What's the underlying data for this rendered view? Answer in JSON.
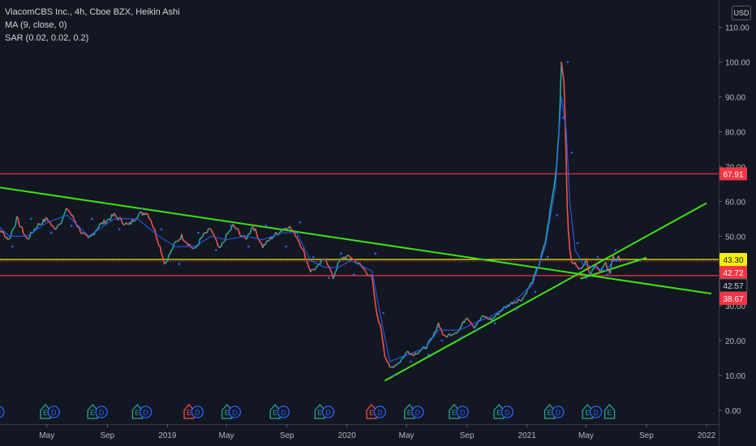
{
  "header": {
    "title": "ViacomCBS Inc., 4h, Cboe BZX, Heikin Ashi",
    "indicator_ma": "MA (9, close, 0)",
    "indicator_sar": "SAR (0.02, 0.02, 0.2)",
    "currency": "USD"
  },
  "colors": {
    "background": "#131722",
    "up": "#26a69a",
    "down": "#ef5350",
    "ma": "#2962ff",
    "sar": "#2962ff",
    "trend_green": "#3fe214",
    "level_red": "#f23645",
    "level_yellow": "#f7f000",
    "axis_text": "#b2b5be"
  },
  "chart_data": {
    "type": "line",
    "title": "ViacomCBS Inc., 4h, Cboe BZX, Heikin Ashi",
    "xlabel": "",
    "ylabel": "",
    "ylim": [
      -2,
      118
    ],
    "x_tick_labels": [
      {
        "label": "May",
        "date": "2018-05-01"
      },
      {
        "label": "Sep",
        "date": "2018-09-01"
      },
      {
        "label": "2019",
        "date": "2019-01-01"
      },
      {
        "label": "May",
        "date": "2019-05-01"
      },
      {
        "label": "Sep",
        "date": "2019-09-01"
      },
      {
        "label": "2020",
        "date": "2020-01-01"
      },
      {
        "label": "May",
        "date": "2020-05-01"
      },
      {
        "label": "Sep",
        "date": "2020-09-01"
      },
      {
        "label": "2021",
        "date": "2021-01-01"
      },
      {
        "label": "May",
        "date": "2021-05-01"
      },
      {
        "label": "Sep",
        "date": "2021-09-01"
      },
      {
        "label": "2022",
        "date": "2022-01-01"
      }
    ],
    "y_ticks": [
      0,
      10,
      20,
      30,
      40,
      50,
      60,
      70,
      80,
      90,
      100,
      110
    ],
    "y_tick_labels": [
      "0.00",
      "10.00",
      "20.00",
      "30.00",
      "40.00",
      "50.00",
      "60.00",
      "70.00",
      "80.00",
      "90.00",
      "100.00",
      "110.00"
    ],
    "price_tags": [
      {
        "label": "67.91",
        "value": 67.91,
        "color": "#f23645",
        "text_color": "#ffffff"
      },
      {
        "label": "43.30",
        "value": 43.3,
        "color": "#f7f000",
        "text_color": "#131722"
      },
      {
        "label": "42.72",
        "value": 42.72,
        "color": "#f23645",
        "text_color": "#ffffff"
      },
      {
        "label": "42.57",
        "value": 42.57,
        "color": "#131722",
        "text_color": "#d1d4dc"
      },
      {
        "label": "38.67",
        "value": 38.67,
        "color": "#f23645",
        "text_color": "#ffffff"
      }
    ],
    "horizontal_levels": [
      {
        "value": 67.91,
        "color": "#f23645"
      },
      {
        "value": 43.3,
        "color": "#f7f000"
      },
      {
        "value": 38.67,
        "color": "#f23645"
      }
    ],
    "current_price": 42.72,
    "trend_lines": [
      {
        "x1": "2018-01-01",
        "y1": 64.5,
        "x2": "2022-01-11",
        "y2": 33.5
      },
      {
        "x1": "2020-03-18",
        "y1": 8.5,
        "x2": "2022-01-01",
        "y2": 59.5
      },
      {
        "x1": "2021-04-20",
        "y1": 37.8,
        "x2": "2021-09-01",
        "y2": 43.8
      }
    ],
    "series": [
      {
        "type": "price",
        "x": [
          "2018-01-01",
          "2018-01-18",
          "2018-02-13",
          "2018-03-01",
          "2018-03-22",
          "2018-04-11",
          "2018-05-02",
          "2018-05-16",
          "2018-06-02",
          "2018-06-12",
          "2018-07-11",
          "2018-07-25",
          "2018-08-15",
          "2018-09-15",
          "2018-10-14",
          "2018-11-01",
          "2018-11-19",
          "2018-11-28",
          "2018-12-15",
          "2018-12-27",
          "2019-01-17",
          "2019-01-30",
          "2019-02-25",
          "2019-03-14",
          "2019-03-31",
          "2019-04-17",
          "2019-05-01",
          "2019-05-15",
          "2019-06-09",
          "2019-06-24",
          "2019-07-14",
          "2019-08-04",
          "2019-08-24",
          "2019-09-04",
          "2019-09-21",
          "2019-10-01",
          "2019-10-19",
          "2019-11-02",
          "2019-11-18",
          "2019-12-04",
          "2019-12-14",
          "2019-12-24",
          "2020-01-09",
          "2020-01-26",
          "2020-02-21",
          "2020-03-01",
          "2020-03-11",
          "2020-03-18",
          "2020-03-28",
          "2020-04-18",
          "2020-05-04",
          "2020-05-14",
          "2020-06-09",
          "2020-06-24",
          "2020-07-05",
          "2020-07-17",
          "2020-08-16",
          "2020-09-01",
          "2020-09-16",
          "2020-10-04",
          "2020-10-21",
          "2020-11-12",
          "2020-12-03",
          "2020-12-23",
          "2021-01-12",
          "2021-01-26",
          "2021-02-07",
          "2021-02-17",
          "2021-02-28",
          "2021-03-07",
          "2021-03-12",
          "2021-03-17",
          "2021-03-22",
          "2021-03-24",
          "2021-03-26",
          "2021-03-29",
          "2021-04-03",
          "2021-04-09",
          "2021-04-16",
          "2021-04-25",
          "2021-05-02",
          "2021-05-10",
          "2021-05-20",
          "2021-05-30",
          "2021-06-10",
          "2021-06-19",
          "2021-06-25",
          "2021-07-01",
          "2021-07-06",
          "2021-07-11"
        ],
        "y": [
          57,
          53,
          49,
          55,
          49,
          53,
          55,
          52,
          55,
          58,
          51,
          49,
          53,
          56,
          53,
          56,
          57,
          55,
          48,
          42,
          48,
          50,
          46,
          50,
          52,
          46,
          50,
          53,
          49,
          53,
          47,
          50,
          52,
          53,
          50,
          47,
          40,
          41,
          44,
          38,
          42,
          44,
          44,
          42,
          38,
          28,
          23,
          16,
          12,
          14,
          17,
          16,
          18,
          21,
          25,
          21,
          23,
          27,
          24,
          27,
          26,
          29,
          31,
          32,
          37,
          42,
          48,
          57,
          67,
          80,
          100,
          96,
          70,
          58,
          52,
          46,
          42,
          43,
          40,
          42,
          43,
          39,
          42,
          40,
          42,
          39,
          45,
          43,
          44,
          42.72
        ]
      },
      {
        "type": "ma",
        "name": "MA (9, close, 0)",
        "x": [
          "2018-01-01",
          "2018-02-13",
          "2018-03-22",
          "2018-05-02",
          "2018-06-12",
          "2018-07-25",
          "2018-09-15",
          "2018-11-01",
          "2018-12-15",
          "2019-01-17",
          "2019-02-25",
          "2019-03-31",
          "2019-05-01",
          "2019-06-09",
          "2019-07-14",
          "2019-08-24",
          "2019-09-21",
          "2019-10-19",
          "2019-11-18",
          "2019-12-14",
          "2020-01-09",
          "2020-02-21",
          "2020-03-11",
          "2020-03-28",
          "2020-05-04",
          "2020-06-09",
          "2020-07-05",
          "2020-08-16",
          "2020-09-16",
          "2020-10-21",
          "2020-12-03",
          "2021-01-12",
          "2021-02-07",
          "2021-02-28",
          "2021-03-12",
          "2021-03-22",
          "2021-03-29",
          "2021-04-09",
          "2021-04-25",
          "2021-05-20",
          "2021-06-10",
          "2021-06-25",
          "2021-07-11"
        ],
        "y": [
          56,
          50,
          50,
          54,
          56,
          50,
          55,
          55,
          50,
          47,
          47,
          50,
          49,
          50,
          49,
          51,
          51,
          43,
          41,
          41,
          43,
          40,
          26,
          14,
          16,
          18,
          23,
          23,
          25,
          27,
          31,
          36,
          47,
          64,
          90,
          80,
          60,
          46,
          42,
          41,
          40,
          43,
          43
        ]
      },
      {
        "type": "sar",
        "name": "SAR (0.02, 0.02, 0.2)",
        "x": [
          "2018-01-10",
          "2018-02-20",
          "2018-03-30",
          "2018-05-10",
          "2018-06-20",
          "2018-08-01",
          "2018-09-25",
          "2018-11-10",
          "2018-12-20",
          "2019-01-25",
          "2019-03-05",
          "2019-04-10",
          "2019-05-10",
          "2019-06-15",
          "2019-07-20",
          "2019-08-30",
          "2019-09-28",
          "2019-10-25",
          "2019-11-25",
          "2019-12-20",
          "2020-01-15",
          "2020-02-28",
          "2020-03-15",
          "2020-04-05",
          "2020-05-10",
          "2020-06-15",
          "2020-07-12",
          "2020-08-22",
          "2020-09-22",
          "2020-10-28",
          "2020-12-10",
          "2021-01-18",
          "2021-02-12",
          "2021-03-03",
          "2021-03-15",
          "2021-03-25",
          "2021-04-02",
          "2021-04-14",
          "2021-05-01",
          "2021-05-25",
          "2021-06-14",
          "2021-06-30"
        ],
        "y": [
          53,
          47,
          55,
          51,
          53,
          55,
          52,
          58,
          52,
          42,
          51,
          46,
          53,
          47,
          53,
          47,
          54,
          44,
          38,
          45,
          39,
          45,
          28,
          10,
          14,
          16,
          20,
          21,
          23,
          25,
          29,
          34,
          44,
          56,
          84,
          100,
          74,
          48,
          38,
          44,
          39,
          46
        ]
      }
    ],
    "events": [
      {
        "type": "E",
        "date": "2018-01-06",
        "color": "#26a69a"
      },
      {
        "type": "D",
        "date": "2018-01-22",
        "color": "#2962ff"
      },
      {
        "type": "E",
        "date": "2018-04-28",
        "color": "#26a69a"
      },
      {
        "type": "D",
        "date": "2018-05-15",
        "color": "#2962ff"
      },
      {
        "type": "E",
        "date": "2018-08-02",
        "color": "#26a69a"
      },
      {
        "type": "D",
        "date": "2018-08-20",
        "color": "#2962ff"
      },
      {
        "type": "E",
        "date": "2018-11-01",
        "color": "#26a69a"
      },
      {
        "type": "D",
        "date": "2018-11-18",
        "color": "#2962ff"
      },
      {
        "type": "E",
        "date": "2019-02-14",
        "color": "#ef5350"
      },
      {
        "type": "D",
        "date": "2019-03-03",
        "color": "#2962ff"
      },
      {
        "type": "E",
        "date": "2019-05-02",
        "color": "#26a69a"
      },
      {
        "type": "D",
        "date": "2019-05-18",
        "color": "#2962ff"
      },
      {
        "type": "E",
        "date": "2019-08-08",
        "color": "#26a69a"
      },
      {
        "type": "D",
        "date": "2019-08-25",
        "color": "#2962ff"
      },
      {
        "type": "E",
        "date": "2019-11-07",
        "color": "#26a69a"
      },
      {
        "type": "D",
        "date": "2019-11-24",
        "color": "#2962ff"
      },
      {
        "type": "E",
        "date": "2020-02-20",
        "color": "#ef5350"
      },
      {
        "type": "D",
        "date": "2020-03-08",
        "color": "#2962ff"
      },
      {
        "type": "E",
        "date": "2020-05-07",
        "color": "#26a69a"
      },
      {
        "type": "D",
        "date": "2020-05-24",
        "color": "#2962ff"
      },
      {
        "type": "E",
        "date": "2020-08-06",
        "color": "#26a69a"
      },
      {
        "type": "D",
        "date": "2020-08-23",
        "color": "#2962ff"
      },
      {
        "type": "E",
        "date": "2020-11-05",
        "color": "#26a69a"
      },
      {
        "type": "D",
        "date": "2020-11-22",
        "color": "#2962ff"
      },
      {
        "type": "E",
        "date": "2021-02-16",
        "color": "#26a69a"
      },
      {
        "type": "D",
        "date": "2021-03-05",
        "color": "#2962ff"
      },
      {
        "type": "E",
        "date": "2021-05-04",
        "color": "#26a69a"
      },
      {
        "type": "D",
        "date": "2021-05-21",
        "color": "#2962ff"
      },
      {
        "type": "E",
        "date": "2021-06-18",
        "color": "#26a69a"
      }
    ]
  }
}
